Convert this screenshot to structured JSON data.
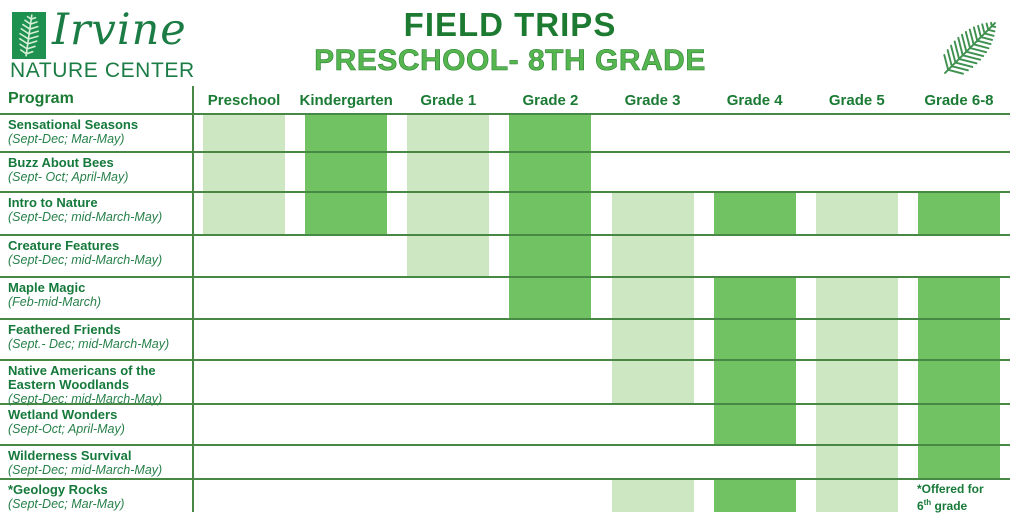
{
  "logo": {
    "name": "Irvine",
    "subtitle": "NATURE CENTER"
  },
  "title": {
    "line1": "FIELD TRIPS",
    "line2": "PRESCHOOL- 8TH GRADE"
  },
  "colors": {
    "band_light": "#cde7c3",
    "band_dark": "#70c263",
    "grid_line": "#478944",
    "text_green": "#15793b",
    "title_dark": "#1d7a31",
    "title_light": "#55b54e"
  },
  "table": {
    "program_header": "Program",
    "columns": [
      "Preschool",
      "Kindergarten",
      "Grade 1",
      "Grade 2",
      "Grade 3",
      "Grade 4",
      "Grade 5",
      "Grade 6-8"
    ],
    "rows": [
      {
        "name": "Sensational Seasons",
        "dates": "(Sept-Dec; Mar-May)",
        "cells": [
          "light",
          "dark",
          "light",
          "dark",
          "",
          "",
          "",
          ""
        ]
      },
      {
        "name": "Buzz About Bees",
        "dates": "(Sept- Oct; April-May)",
        "cells": [
          "light",
          "dark",
          "light",
          "dark",
          "",
          "",
          "",
          ""
        ]
      },
      {
        "name": "Intro to Nature",
        "dates": "(Sept-Dec; mid-March-May)",
        "cells": [
          "light",
          "dark",
          "light",
          "dark",
          "light",
          "dark",
          "light",
          "dark"
        ]
      },
      {
        "name": "Creature Features",
        "dates": "(Sept-Dec; mid-March-May)",
        "cells": [
          "",
          "",
          "light",
          "dark",
          "light",
          "",
          "",
          ""
        ]
      },
      {
        "name": "Maple Magic",
        "dates": "(Feb-mid-March)",
        "cells": [
          "",
          "",
          "",
          "dark",
          "light",
          "dark",
          "light",
          "dark"
        ]
      },
      {
        "name": "Feathered Friends",
        "dates": "(Sept.- Dec; mid-March-May)",
        "cells": [
          "",
          "",
          "",
          "",
          "light",
          "dark",
          "light",
          "dark"
        ]
      },
      {
        "name": "Native Americans of the Eastern Woodlands",
        "dates": "(Sept-Dec; mid-March-May)",
        "cells": [
          "",
          "",
          "",
          "",
          "light",
          "dark",
          "light",
          "dark"
        ]
      },
      {
        "name": "Wetland Wonders",
        "dates": "(Sept-Oct; April-May)",
        "cells": [
          "",
          "",
          "",
          "",
          "",
          "dark",
          "light",
          "dark"
        ]
      },
      {
        "name": "Wilderness Survival",
        "dates": "(Sept-Dec; mid-March-May)",
        "cells": [
          "",
          "",
          "",
          "",
          "",
          "",
          "light",
          "dark"
        ]
      },
      {
        "name": "*Geology Rocks",
        "dates": "(Sept-Dec; Mar-May)",
        "cells": [
          "",
          "",
          "",
          "",
          "light",
          "dark",
          "light",
          "note"
        ]
      }
    ],
    "note": {
      "line1": "*Offered for",
      "grade_num": "6",
      "grade_sup": "th",
      "grade_rest": " grade"
    }
  }
}
